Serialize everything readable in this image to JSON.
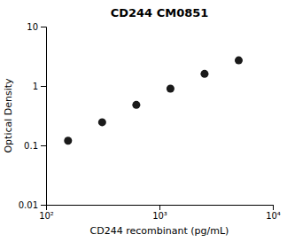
{
  "chart_data": {
    "type": "scatter",
    "title": "CD244 CM0851",
    "xlabel": "CD244 recombinant (pg/mL)",
    "ylabel": "Optical Density",
    "x": [
      156.25,
      312.5,
      625,
      1250,
      2500,
      5000
    ],
    "values": [
      0.12,
      0.245,
      0.48,
      0.9,
      1.6,
      2.7
    ],
    "color": "#1a1a1a",
    "marker": "circle",
    "log": true,
    "xlim": [
      100,
      10000
    ],
    "xticks": [
      {
        "value": 100,
        "label": "10²"
      },
      {
        "value": 1000,
        "label": "10³"
      },
      {
        "value": 10000,
        "label": "10⁴"
      }
    ],
    "ylim": [
      0.01,
      10
    ],
    "yticks": [
      0.01,
      0.1,
      1,
      10
    ]
  }
}
